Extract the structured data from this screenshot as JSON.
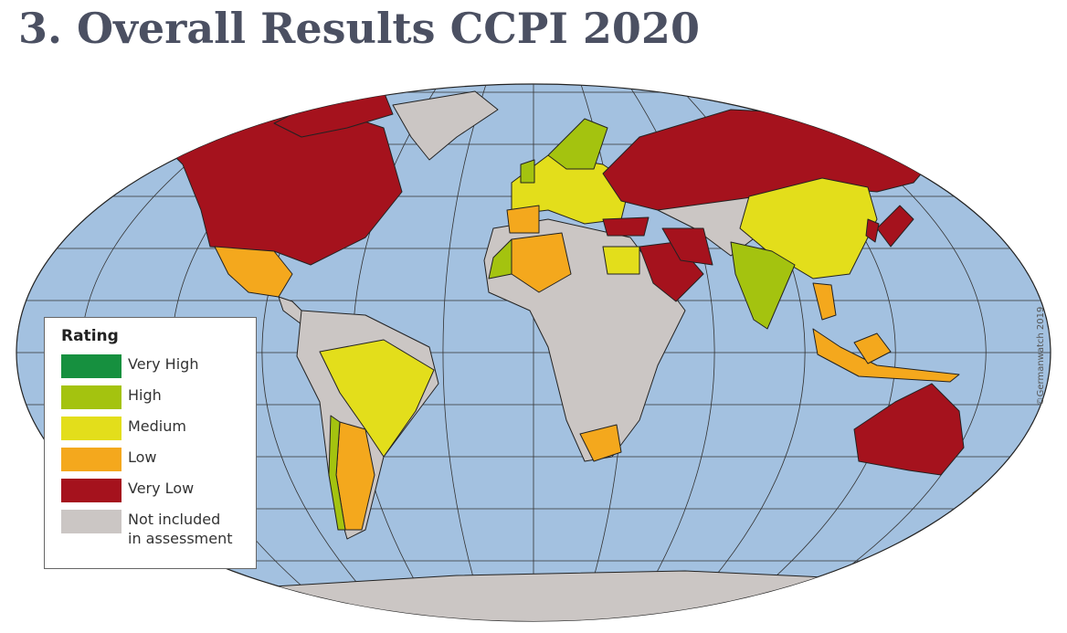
{
  "title": "3. Overall Results CCPI 2020",
  "legend": {
    "title": "Rating",
    "items": [
      {
        "label": "Very High",
        "color": "#16903f"
      },
      {
        "label": "High",
        "color": "#a4c30f"
      },
      {
        "label": "Medium",
        "color": "#e3de1b"
      },
      {
        "label": "Low",
        "color": "#f4a81d"
      },
      {
        "label": "Very Low",
        "color": "#a5121d"
      },
      {
        "label": "Not included in assessment",
        "color": "#cbc6c4"
      }
    ]
  },
  "credit": "©Germanwatch 2019"
}
